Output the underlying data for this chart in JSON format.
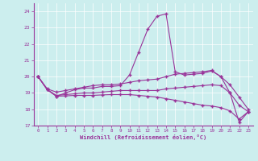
{
  "xlabel": "Windchill (Refroidissement éolien,°C)",
  "bg_color": "#cceeee",
  "line_color": "#993399",
  "marker": "+",
  "xlim": [
    -0.5,
    23.5
  ],
  "ylim": [
    17,
    24.5
  ],
  "yticks": [
    17,
    18,
    19,
    20,
    21,
    22,
    23,
    24
  ],
  "xticks": [
    0,
    1,
    2,
    3,
    4,
    5,
    6,
    7,
    8,
    9,
    10,
    11,
    12,
    13,
    14,
    15,
    16,
    17,
    18,
    19,
    20,
    21,
    22,
    23
  ],
  "line1_x": [
    0,
    1,
    2,
    3,
    4,
    5,
    6,
    7,
    8,
    9,
    10,
    11,
    12,
    13,
    14,
    15,
    16,
    17,
    18,
    19,
    20,
    21,
    22,
    23
  ],
  "line1_y": [
    20.0,
    19.2,
    18.8,
    19.0,
    19.2,
    19.3,
    19.3,
    19.4,
    19.4,
    19.45,
    20.1,
    21.5,
    22.9,
    23.7,
    23.85,
    20.3,
    20.1,
    20.15,
    20.2,
    20.35,
    20.0,
    19.0,
    17.2,
    17.85
  ],
  "line2_x": [
    0,
    1,
    2,
    3,
    4,
    5,
    6,
    7,
    8,
    9,
    10,
    11,
    12,
    13,
    14,
    15,
    16,
    17,
    18,
    19,
    20,
    21,
    22,
    23
  ],
  "line2_y": [
    20.0,
    19.25,
    19.05,
    19.15,
    19.25,
    19.35,
    19.45,
    19.5,
    19.5,
    19.55,
    19.65,
    19.75,
    19.8,
    19.85,
    20.0,
    20.15,
    20.2,
    20.25,
    20.3,
    20.38,
    20.0,
    19.5,
    18.75,
    18.0
  ],
  "line3_x": [
    0,
    1,
    2,
    3,
    4,
    5,
    6,
    7,
    8,
    9,
    10,
    11,
    12,
    13,
    14,
    15,
    16,
    17,
    18,
    19,
    20,
    21,
    22,
    23
  ],
  "line3_y": [
    20.0,
    19.2,
    18.85,
    18.9,
    18.95,
    19.0,
    19.0,
    19.05,
    19.1,
    19.15,
    19.15,
    19.15,
    19.15,
    19.15,
    19.25,
    19.3,
    19.35,
    19.4,
    19.45,
    19.5,
    19.45,
    19.0,
    18.25,
    17.85
  ],
  "line4_x": [
    0,
    1,
    2,
    3,
    4,
    5,
    6,
    7,
    8,
    9,
    10,
    11,
    12,
    13,
    14,
    15,
    16,
    17,
    18,
    19,
    20,
    21,
    22,
    23
  ],
  "line4_y": [
    20.0,
    19.2,
    18.8,
    18.82,
    18.85,
    18.85,
    18.85,
    18.88,
    18.9,
    18.9,
    18.9,
    18.85,
    18.8,
    18.75,
    18.65,
    18.55,
    18.45,
    18.35,
    18.25,
    18.2,
    18.1,
    17.9,
    17.4,
    17.85
  ]
}
